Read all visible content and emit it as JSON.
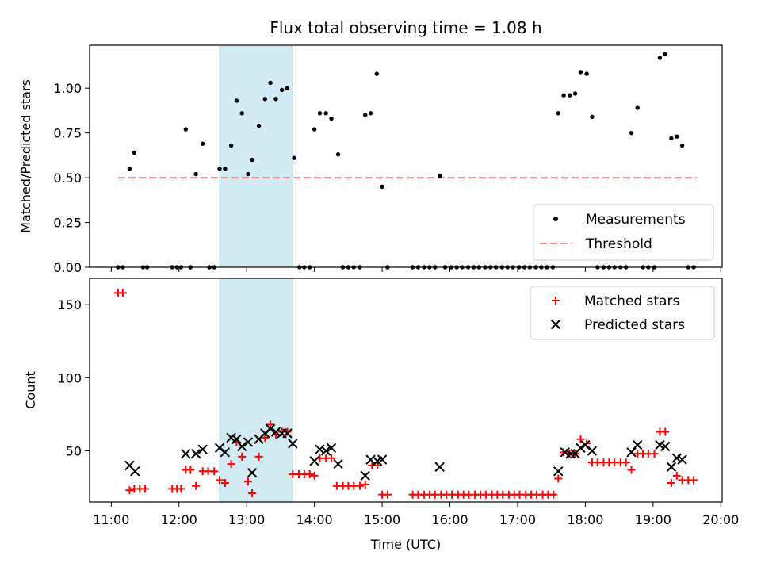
{
  "chart_data": {
    "title": "Flux total observing time = 1.08 h",
    "xlabel": "Time (UTC)",
    "x_ticks": [
      "11:00",
      "12:00",
      "13:00",
      "14:00",
      "15:00",
      "16:00",
      "17:00",
      "18:00",
      "19:00",
      "20:00"
    ],
    "xlim_hours": [
      10.68,
      20.02
    ],
    "highlight_span_hours": [
      12.6,
      13.68
    ],
    "colors": {
      "measurement": "#000000",
      "threshold": "#ff8080",
      "matched": "#ff0000",
      "predicted": "#000000",
      "span": "#add8e6"
    },
    "panels": [
      {
        "type": "scatter",
        "ylabel": "Matched/Predicted stars",
        "ylim": [
          0,
          1.24
        ],
        "y_ticks": [
          "0.00",
          "0.25",
          "0.50",
          "0.75",
          "1.00"
        ],
        "legend_position": "lower-right",
        "legend": [
          "Measurements",
          "Threshold"
        ],
        "threshold": {
          "value": 0.5,
          "x": [
            11.1,
            19.65
          ]
        },
        "series": [
          {
            "name": "Measurements",
            "points": [
              [
                11.1,
                0
              ],
              [
                11.17,
                0
              ],
              [
                11.27,
                0.55
              ],
              [
                11.34,
                0.64
              ],
              [
                11.47,
                0
              ],
              [
                11.53,
                0
              ],
              [
                11.9,
                0
              ],
              [
                11.97,
                0
              ],
              [
                12.03,
                0
              ],
              [
                12.1,
                0.77
              ],
              [
                12.17,
                0
              ],
              [
                12.25,
                0.52
              ],
              [
                12.35,
                0.69
              ],
              [
                12.45,
                0
              ],
              [
                12.52,
                0
              ],
              [
                12.6,
                0.55
              ],
              [
                12.68,
                0.55
              ],
              [
                12.77,
                0.68
              ],
              [
                12.85,
                0.93
              ],
              [
                12.93,
                0.86
              ],
              [
                13.02,
                0.52
              ],
              [
                13.08,
                0.6
              ],
              [
                13.18,
                0.79
              ],
              [
                13.27,
                0.94
              ],
              [
                13.35,
                1.03
              ],
              [
                13.43,
                0.94
              ],
              [
                13.52,
                0.99
              ],
              [
                13.6,
                1.0
              ],
              [
                13.7,
                0.61
              ],
              [
                13.78,
                0
              ],
              [
                13.85,
                0
              ],
              [
                13.93,
                0
              ],
              [
                14.0,
                0.77
              ],
              [
                14.08,
                0.86
              ],
              [
                14.17,
                0.86
              ],
              [
                14.25,
                0.83
              ],
              [
                14.35,
                0.63
              ],
              [
                14.42,
                0
              ],
              [
                14.5,
                0
              ],
              [
                14.58,
                0
              ],
              [
                14.67,
                0
              ],
              [
                14.75,
                0.85
              ],
              [
                14.83,
                0.86
              ],
              [
                14.92,
                1.08
              ],
              [
                15.0,
                0.45
              ],
              [
                15.08,
                0
              ],
              [
                15.45,
                0
              ],
              [
                15.53,
                0
              ],
              [
                15.62,
                0
              ],
              [
                15.7,
                0
              ],
              [
                15.78,
                0
              ],
              [
                15.85,
                0.51
              ],
              [
                15.93,
                0
              ],
              [
                16.02,
                0
              ],
              [
                16.1,
                0
              ],
              [
                16.18,
                0
              ],
              [
                16.27,
                0
              ],
              [
                16.35,
                0
              ],
              [
                16.43,
                0
              ],
              [
                16.52,
                0
              ],
              [
                16.6,
                0
              ],
              [
                16.68,
                0
              ],
              [
                16.77,
                0
              ],
              [
                16.85,
                0
              ],
              [
                16.93,
                0
              ],
              [
                17.02,
                0
              ],
              [
                17.1,
                0
              ],
              [
                17.18,
                0
              ],
              [
                17.27,
                0
              ],
              [
                17.35,
                0
              ],
              [
                17.43,
                0
              ],
              [
                17.52,
                0
              ],
              [
                17.6,
                0.86
              ],
              [
                17.68,
                0.96
              ],
              [
                17.77,
                0.96
              ],
              [
                17.85,
                0.97
              ],
              [
                17.93,
                1.09
              ],
              [
                18.02,
                1.08
              ],
              [
                18.1,
                0.84
              ],
              [
                18.18,
                0
              ],
              [
                18.27,
                0
              ],
              [
                18.35,
                0
              ],
              [
                18.43,
                0
              ],
              [
                18.52,
                0
              ],
              [
                18.6,
                0
              ],
              [
                18.68,
                0.75
              ],
              [
                18.77,
                0.89
              ],
              [
                18.85,
                0
              ],
              [
                18.93,
                0
              ],
              [
                19.02,
                0
              ],
              [
                19.1,
                1.17
              ],
              [
                19.18,
                1.19
              ],
              [
                19.27,
                0.72
              ],
              [
                19.35,
                0.73
              ],
              [
                19.43,
                0.68
              ],
              [
                19.52,
                0
              ],
              [
                19.6,
                0
              ]
            ]
          }
        ]
      },
      {
        "type": "scatter",
        "ylabel": "Count",
        "ylim": [
          15,
          168
        ],
        "y_ticks": [
          "50",
          "100",
          "150"
        ],
        "legend_position": "top-right",
        "legend": [
          "Matched stars",
          "Predicted stars"
        ],
        "series": [
          {
            "name": "Matched stars",
            "points": [
              [
                11.1,
                158
              ],
              [
                11.17,
                158
              ],
              [
                11.27,
                23
              ],
              [
                11.34,
                24
              ],
              [
                11.42,
                24
              ],
              [
                11.5,
                24
              ],
              [
                11.9,
                24
              ],
              [
                11.97,
                24
              ],
              [
                12.03,
                24
              ],
              [
                12.1,
                37
              ],
              [
                12.17,
                37
              ],
              [
                12.25,
                26
              ],
              [
                12.35,
                36
              ],
              [
                12.43,
                36
              ],
              [
                12.52,
                36
              ],
              [
                12.6,
                30
              ],
              [
                12.68,
                28
              ],
              [
                12.77,
                41
              ],
              [
                12.85,
                56
              ],
              [
                12.93,
                46
              ],
              [
                13.02,
                29
              ],
              [
                13.08,
                21
              ],
              [
                13.18,
                46
              ],
              [
                13.27,
                59
              ],
              [
                13.35,
                68
              ],
              [
                13.43,
                61
              ],
              [
                13.52,
                63
              ],
              [
                13.6,
                63
              ],
              [
                13.68,
                34
              ],
              [
                13.77,
                34
              ],
              [
                13.85,
                34
              ],
              [
                13.93,
                34
              ],
              [
                14.0,
                33
              ],
              [
                14.08,
                45
              ],
              [
                14.17,
                45
              ],
              [
                14.25,
                45
              ],
              [
                14.33,
                26
              ],
              [
                14.42,
                26
              ],
              [
                14.5,
                26
              ],
              [
                14.58,
                26
              ],
              [
                14.67,
                26
              ],
              [
                14.75,
                27
              ],
              [
                14.85,
                40
              ],
              [
                14.93,
                40
              ],
              [
                15.0,
                20
              ],
              [
                15.08,
                20
              ],
              [
                15.45,
                20
              ],
              [
                15.53,
                20
              ],
              [
                15.62,
                20
              ],
              [
                15.7,
                20
              ],
              [
                15.78,
                20
              ],
              [
                15.87,
                20
              ],
              [
                15.95,
                20
              ],
              [
                16.03,
                20
              ],
              [
                16.12,
                20
              ],
              [
                16.2,
                20
              ],
              [
                16.28,
                20
              ],
              [
                16.37,
                20
              ],
              [
                16.45,
                20
              ],
              [
                16.53,
                20
              ],
              [
                16.62,
                20
              ],
              [
                16.7,
                20
              ],
              [
                16.78,
                20
              ],
              [
                16.87,
                20
              ],
              [
                16.95,
                20
              ],
              [
                17.03,
                20
              ],
              [
                17.12,
                20
              ],
              [
                17.2,
                20
              ],
              [
                17.28,
                20
              ],
              [
                17.37,
                20
              ],
              [
                17.45,
                20
              ],
              [
                17.53,
                20
              ],
              [
                17.6,
                31
              ],
              [
                17.68,
                49
              ],
              [
                17.77,
                48
              ],
              [
                17.85,
                48
              ],
              [
                17.93,
                58
              ],
              [
                18.02,
                55
              ],
              [
                18.1,
                42
              ],
              [
                18.18,
                42
              ],
              [
                18.27,
                42
              ],
              [
                18.35,
                42
              ],
              [
                18.43,
                42
              ],
              [
                18.52,
                42
              ],
              [
                18.6,
                42
              ],
              [
                18.68,
                37
              ],
              [
                18.77,
                48
              ],
              [
                18.85,
                48
              ],
              [
                18.93,
                48
              ],
              [
                19.02,
                48
              ],
              [
                19.1,
                63
              ],
              [
                19.18,
                63
              ],
              [
                19.27,
                28
              ],
              [
                19.35,
                33
              ],
              [
                19.43,
                30
              ],
              [
                19.52,
                30
              ],
              [
                19.6,
                30
              ]
            ]
          },
          {
            "name": "Predicted stars",
            "points": [
              [
                11.27,
                40
              ],
              [
                11.35,
                36
              ],
              [
                12.1,
                48
              ],
              [
                12.25,
                48
              ],
              [
                12.35,
                51
              ],
              [
                12.6,
                52
              ],
              [
                12.68,
                49
              ],
              [
                12.77,
                59
              ],
              [
                12.85,
                58
              ],
              [
                12.93,
                53
              ],
              [
                13.02,
                56
              ],
              [
                13.08,
                35
              ],
              [
                13.18,
                58
              ],
              [
                13.27,
                62
              ],
              [
                13.35,
                65
              ],
              [
                13.43,
                63
              ],
              [
                13.52,
                62
              ],
              [
                13.6,
                62
              ],
              [
                13.68,
                55
              ],
              [
                14.0,
                43
              ],
              [
                14.08,
                51
              ],
              [
                14.17,
                50
              ],
              [
                14.25,
                52
              ],
              [
                14.35,
                41
              ],
              [
                14.75,
                33
              ],
              [
                14.83,
                44
              ],
              [
                14.93,
                43
              ],
              [
                15.0,
                44
              ],
              [
                15.85,
                39
              ],
              [
                17.6,
                36
              ],
              [
                17.7,
                49
              ],
              [
                17.78,
                48
              ],
              [
                17.85,
                48
              ],
              [
                17.93,
                52
              ],
              [
                18.0,
                54
              ],
              [
                18.1,
                50
              ],
              [
                18.68,
                49
              ],
              [
                18.77,
                54
              ],
              [
                19.1,
                54
              ],
              [
                19.18,
                53
              ],
              [
                19.27,
                39
              ],
              [
                19.35,
                45
              ],
              [
                19.43,
                44
              ]
            ]
          }
        ]
      }
    ]
  }
}
